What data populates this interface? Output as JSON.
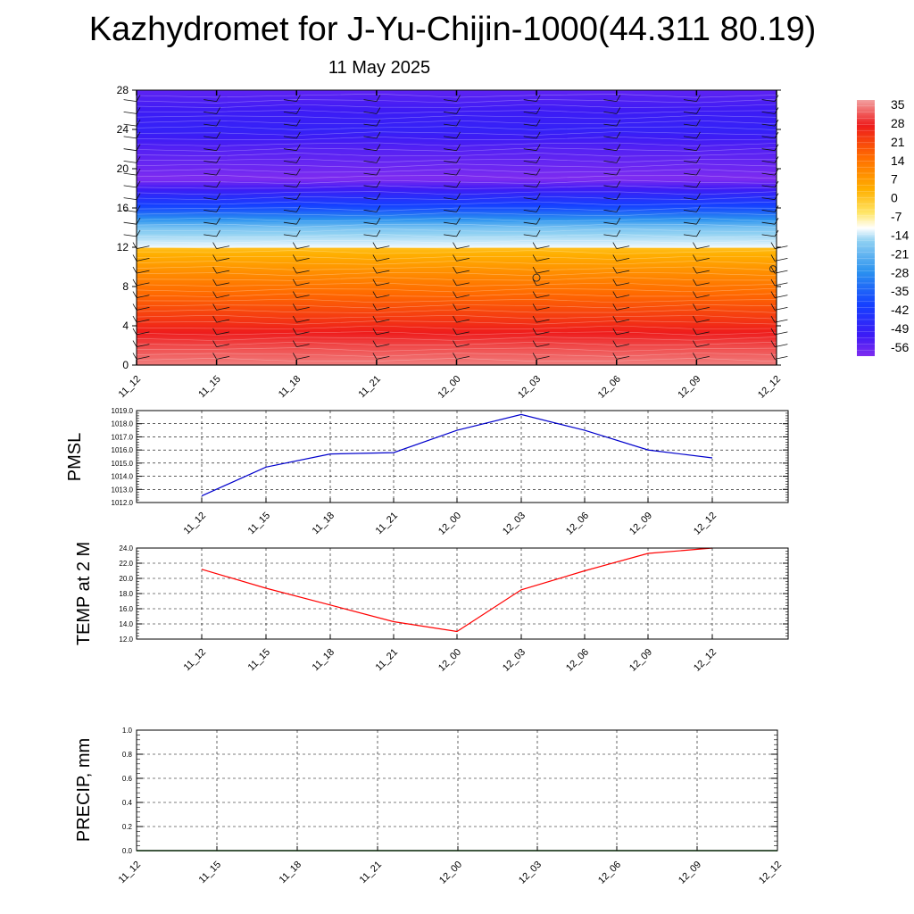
{
  "header": {
    "title": "Kazhydromet for J-Yu-Chijin-1000(44.311 80.19)",
    "date": "11 May 2025"
  },
  "chart_data": [
    {
      "type": "heatmap",
      "title": "",
      "x_labels": [
        "11_12",
        "11_15",
        "11_18",
        "11_21",
        "12_00",
        "12_03",
        "12_06",
        "12_09",
        "12_12"
      ],
      "y_ticks": [
        0,
        4,
        8,
        12,
        16,
        20,
        24,
        28
      ],
      "ylim": [
        0,
        28
      ],
      "colorbar": {
        "labels": [
          "35",
          "28",
          "21",
          "14",
          "7",
          "0",
          "-7",
          "-14",
          "-21",
          "-28",
          "-35",
          "-42",
          "-49",
          "-56"
        ],
        "range": [
          -60,
          38
        ]
      },
      "temperature_profile": {
        "levels": [
          0,
          2,
          4,
          6,
          8,
          10,
          11.9,
          12.1,
          14,
          16,
          18,
          19,
          20,
          22,
          24,
          26,
          28
        ],
        "values": [
          35,
          30,
          24,
          18,
          12,
          5,
          -2,
          -15,
          -22,
          -40,
          -52,
          -60,
          -58,
          -55,
          -50,
          -52,
          -56
        ]
      },
      "wind_barbs": true
    },
    {
      "type": "line",
      "ylabel": "PMSL",
      "x": [
        "11_12",
        "11_15",
        "11_18",
        "11_21",
        "12_00",
        "12_03",
        "12_06",
        "12_09",
        "12_12"
      ],
      "series": [
        {
          "color": "#0000cc",
          "values": [
            1012.5,
            1014.7,
            1015.7,
            1015.8,
            1017.5,
            1018.7,
            1017.5,
            1016.0,
            1015.4
          ]
        }
      ],
      "ylim": [
        1012.0,
        1019.0
      ],
      "y_tick_labels": [
        "1012.0",
        "1013.0",
        "1014.0",
        "1015.0",
        "1016.0",
        "1017.0",
        "1018.0",
        "1019.0"
      ],
      "grid": true
    },
    {
      "type": "line",
      "ylabel": "TEMP at 2 M",
      "x": [
        "11_12",
        "11_15",
        "11_18",
        "11_21",
        "12_00",
        "12_03",
        "12_06",
        "12_09",
        "12_12"
      ],
      "series": [
        {
          "color": "#ff0000",
          "values": [
            21.2,
            18.7,
            16.5,
            14.3,
            13.0,
            18.5,
            21.0,
            23.3,
            24.0
          ]
        }
      ],
      "ylim": [
        12.0,
        24.0
      ],
      "y_tick_labels": [
        "12.0",
        "14.0",
        "16.0",
        "18.0",
        "20.0",
        "22.0",
        "24.0"
      ],
      "grid": true
    },
    {
      "type": "line",
      "ylabel": "PRECIP, mm",
      "x": [
        "11_12",
        "11_15",
        "11_18",
        "11_21",
        "12_00",
        "12_03",
        "12_06",
        "12_09",
        "12_12"
      ],
      "series": [
        {
          "color": "#006400",
          "values": [
            0,
            0,
            0,
            0,
            0,
            0,
            0,
            0,
            0
          ]
        }
      ],
      "ylim": [
        0,
        1.0
      ],
      "y_tick_labels": [
        "0.0",
        "0.2",
        "0.4",
        "0.6",
        "0.8",
        "1.0"
      ],
      "grid": true
    }
  ]
}
